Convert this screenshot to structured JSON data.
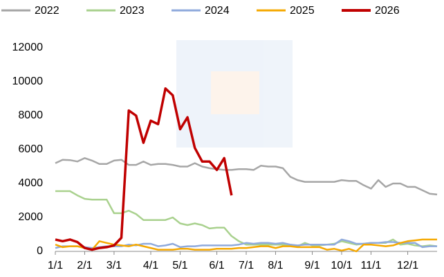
{
  "chart_data": {
    "type": "line",
    "categories": [
      "1/1",
      null,
      null,
      null,
      "2/1",
      null,
      null,
      null,
      "3/1",
      null,
      null,
      null,
      null,
      "4/1",
      null,
      null,
      null,
      "5/1",
      null,
      null,
      null,
      null,
      "6/1",
      null,
      null,
      null,
      "7/1",
      null,
      null,
      null,
      "8/1",
      null,
      null,
      null,
      null,
      "9/1",
      null,
      null,
      null,
      "10/1",
      null,
      null,
      null,
      "11/1",
      null,
      null,
      null,
      null,
      "12/1",
      null,
      null,
      null,
      null
    ],
    "series": [
      {
        "name": "2022",
        "color": "#a6a6a6",
        "values": [
          5200,
          5400,
          5380,
          5300,
          5500,
          5350,
          5150,
          5150,
          5350,
          5400,
          5100,
          5100,
          5300,
          5100,
          5150,
          5150,
          5100,
          5000,
          5000,
          5200,
          5000,
          4900,
          4850,
          4800,
          4800,
          4850,
          4850,
          4800,
          5050,
          5000,
          5000,
          4900,
          4400,
          4200,
          4100,
          4100,
          4100,
          4100,
          4100,
          4200,
          4150,
          4150,
          3900,
          3700,
          4200,
          3800,
          4000,
          4000,
          3800,
          3800,
          3600,
          3400,
          3350
        ]
      },
      {
        "name": "2023",
        "color": "#a9d18e",
        "values": [
          3550,
          3550,
          3550,
          3300,
          3100,
          3050,
          3050,
          3050,
          2250,
          2250,
          2400,
          2200,
          1850,
          1850,
          1850,
          1850,
          2000,
          1650,
          1550,
          1650,
          1550,
          1350,
          1400,
          1400,
          900,
          600,
          400,
          400,
          400,
          400,
          400,
          400,
          400,
          300,
          500,
          350,
          350,
          400,
          450,
          600,
          500,
          400,
          450,
          500,
          500,
          500,
          700,
          400,
          450,
          350,
          300,
          350,
          300
        ]
      },
      {
        "name": "2024",
        "color": "#8faadc",
        "values": [
          200,
          300,
          300,
          300,
          250,
          200,
          250,
          300,
          300,
          300,
          400,
          350,
          450,
          450,
          300,
          350,
          450,
          250,
          300,
          300,
          350,
          350,
          350,
          350,
          350,
          400,
          500,
          450,
          500,
          500,
          450,
          500,
          400,
          350,
          400,
          400,
          400,
          400,
          400,
          700,
          600,
          450,
          450,
          500,
          500,
          550,
          550,
          500,
          500,
          500,
          250,
          300,
          300
        ]
      },
      {
        "name": "2025",
        "color": "#f5a800",
        "values": [
          400,
          250,
          300,
          300,
          200,
          100,
          600,
          500,
          400,
          350,
          300,
          400,
          300,
          200,
          100,
          100,
          100,
          150,
          150,
          100,
          100,
          100,
          150,
          150,
          150,
          200,
          200,
          250,
          300,
          300,
          200,
          300,
          300,
          250,
          250,
          250,
          250,
          100,
          150,
          50,
          150,
          0,
          400,
          400,
          350,
          300,
          350,
          500,
          600,
          650,
          700,
          700,
          700
        ]
      },
      {
        "name": "2026",
        "color": "#c00000",
        "values": [
          700,
          600,
          700,
          550,
          200,
          100,
          200,
          250,
          350,
          800,
          8300,
          8000,
          6400,
          7700,
          7500,
          9600,
          9200,
          7200,
          7900,
          6100,
          5300,
          5300,
          4800,
          5500,
          3300,
          null,
          null,
          null,
          null,
          null,
          null,
          null,
          null,
          null,
          null,
          null,
          null,
          null,
          null,
          null,
          null,
          null,
          null,
          null,
          null,
          null,
          null,
          null,
          null,
          null,
          null,
          null,
          null
        ]
      }
    ],
    "ylim": [
      0,
      12500
    ],
    "yticks": [
      0,
      2000,
      4000,
      6000,
      8000,
      10000,
      12000
    ],
    "grid": false
  }
}
